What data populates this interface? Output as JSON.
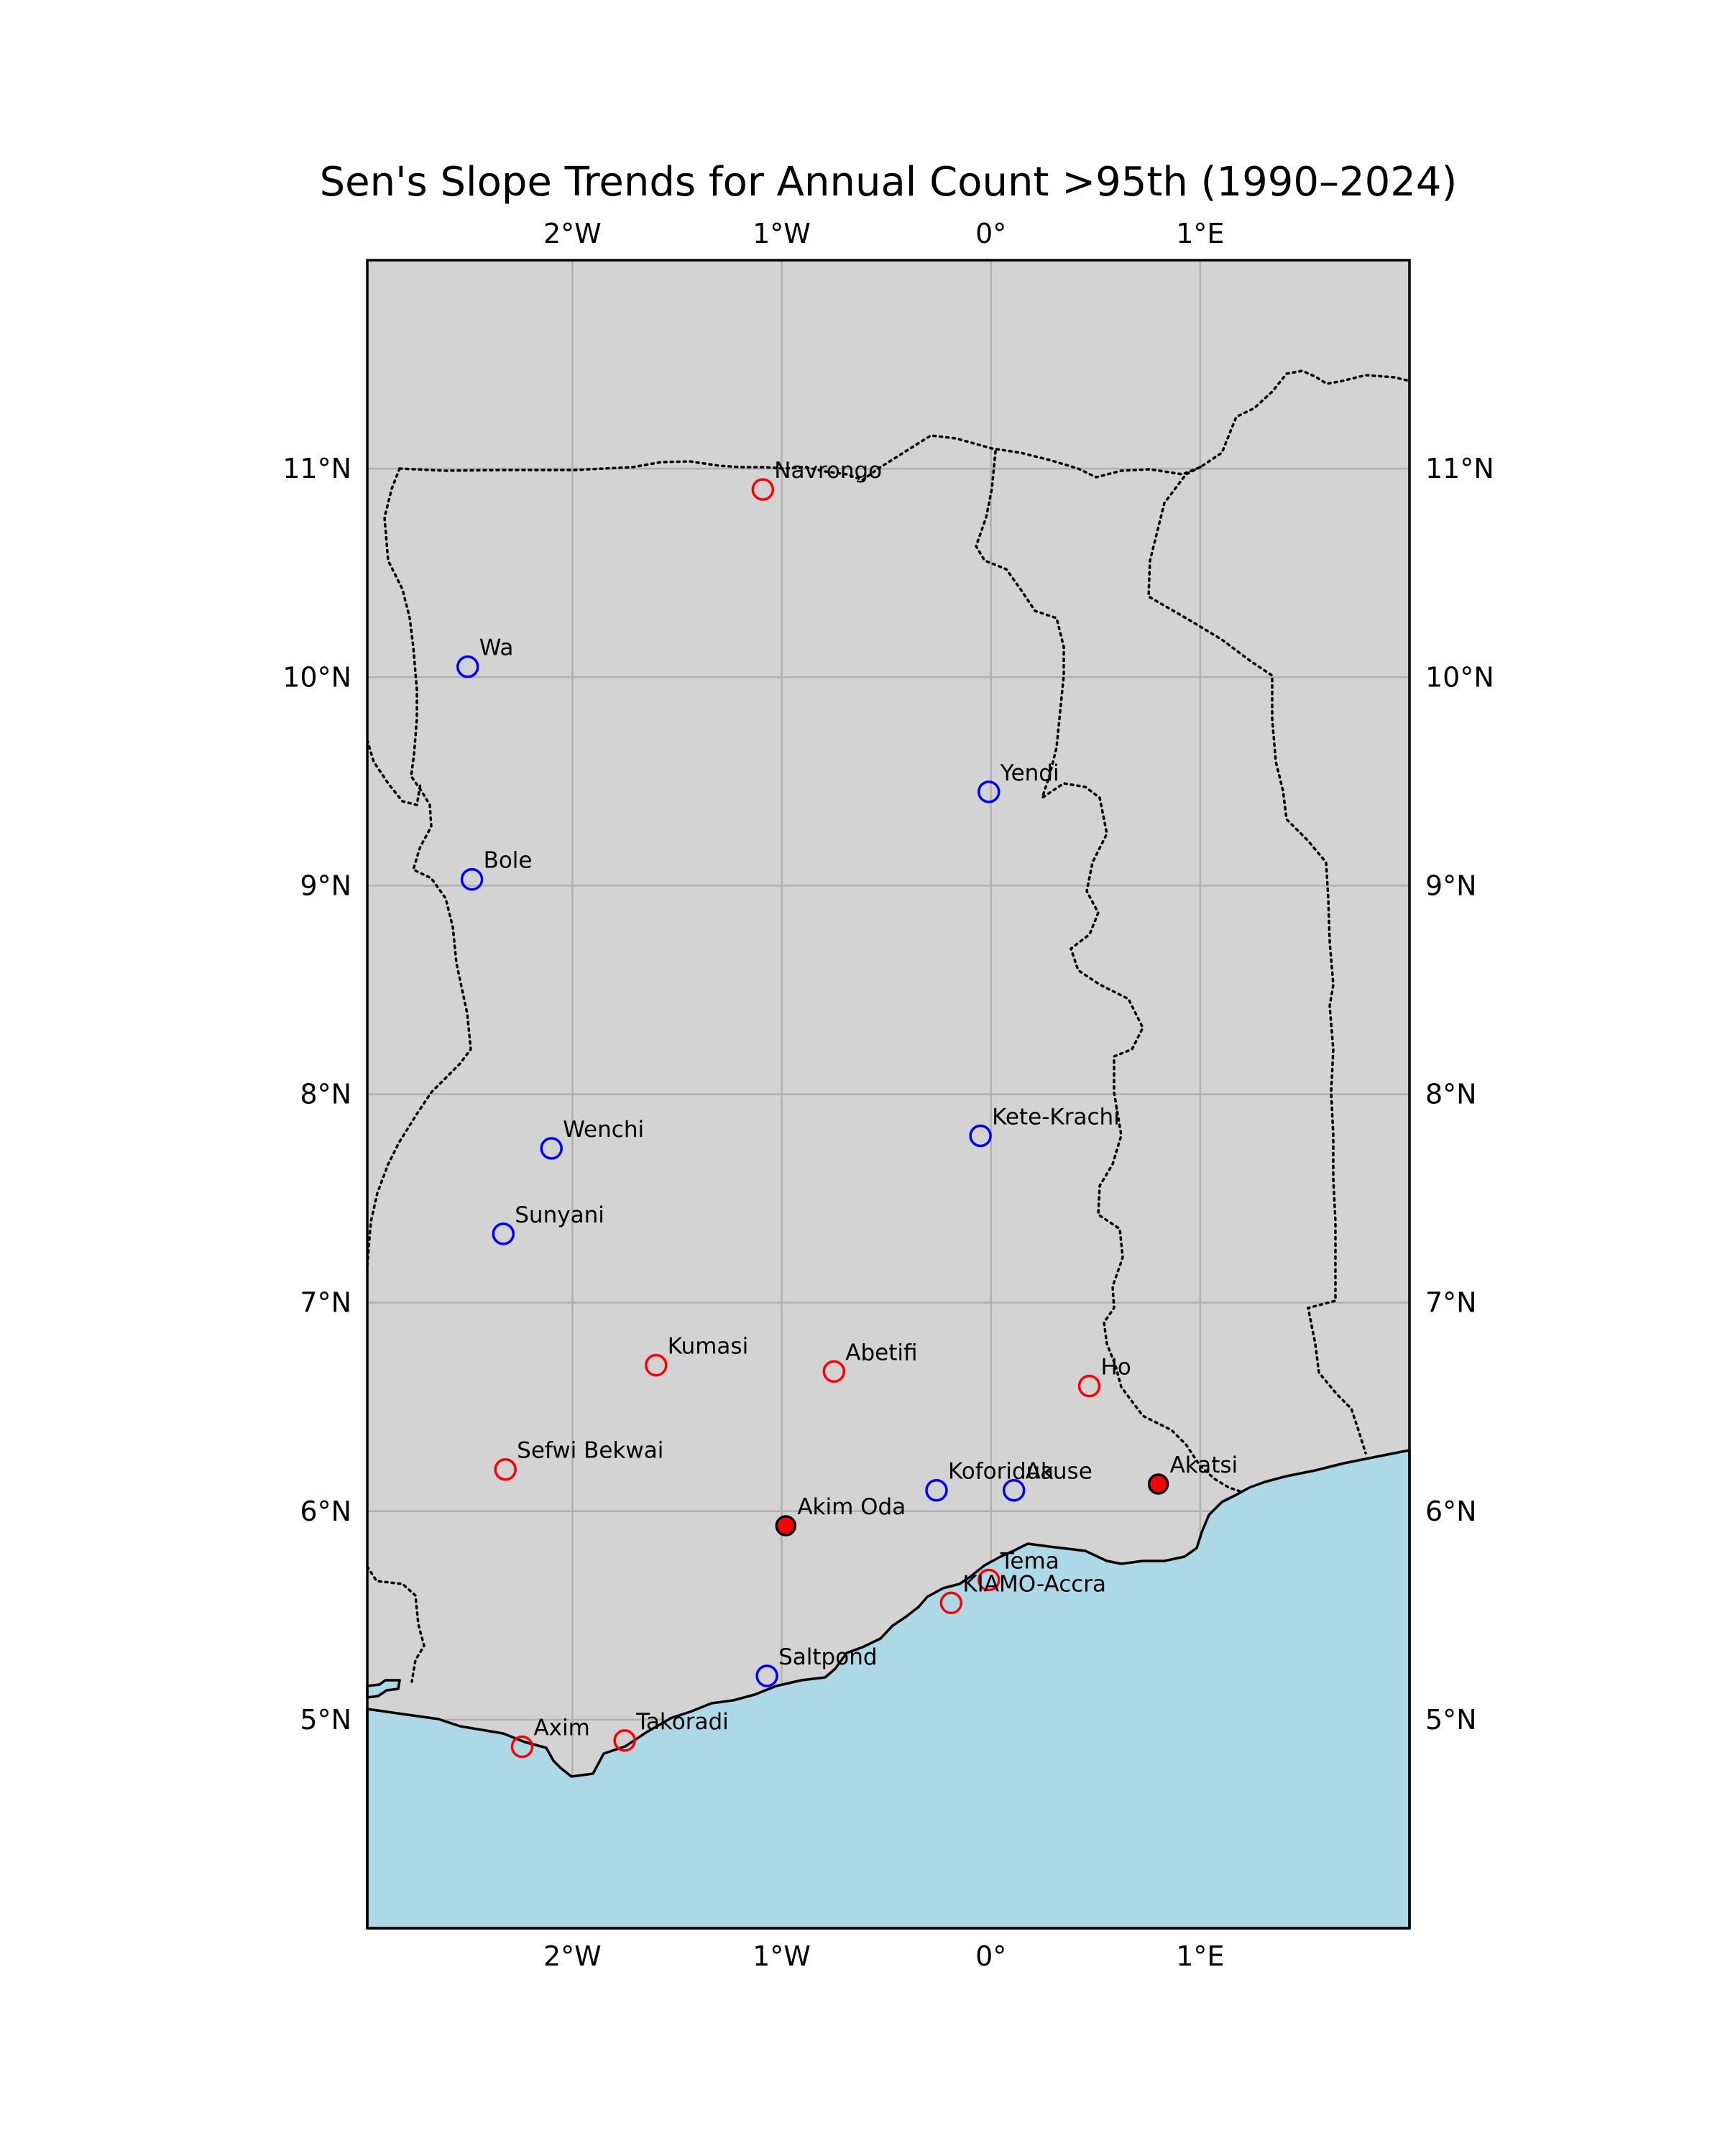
{
  "title": "Sen's Slope Trends for Annual Count >95th (1990–2024)",
  "map": {
    "extent": {
      "lon_min": -2.98,
      "lon_max": 2.0,
      "lat_min": 4.0,
      "lat_max": 12.0
    },
    "land_color": "#d3d3d3",
    "ocean_color": "#add8e6",
    "gridlines": true,
    "lon_ticks": [
      {
        "value": -2,
        "label": "2°W"
      },
      {
        "value": -1,
        "label": "1°W"
      },
      {
        "value": 0,
        "label": "0°"
      },
      {
        "value": 1,
        "label": "1°E"
      }
    ],
    "lat_ticks": [
      {
        "value": 11,
        "label": "11°N"
      },
      {
        "value": 10,
        "label": "10°N"
      },
      {
        "value": 9,
        "label": "9°N"
      },
      {
        "value": 8,
        "label": "8°N"
      },
      {
        "value": 7,
        "label": "7°N"
      },
      {
        "value": 6,
        "label": "6°N"
      },
      {
        "value": 5,
        "label": "5°N"
      }
    ]
  },
  "colors": {
    "positive": "#ff0000",
    "negative": "#0000ff",
    "significant_fill": "#ff0000"
  },
  "stations": [
    {
      "name": "Navrongo",
      "lon": -1.09,
      "lat": 10.9,
      "trend": "positive",
      "significant": false
    },
    {
      "name": "Wa",
      "lon": -2.5,
      "lat": 10.05,
      "trend": "negative",
      "significant": false
    },
    {
      "name": "Yendi",
      "lon": -0.01,
      "lat": 9.45,
      "trend": "negative",
      "significant": false
    },
    {
      "name": "Bole",
      "lon": -2.48,
      "lat": 9.03,
      "trend": "negative",
      "significant": false
    },
    {
      "name": "Wenchi",
      "lon": -2.1,
      "lat": 7.74,
      "trend": "negative",
      "significant": false
    },
    {
      "name": "Kete-Krachi",
      "lon": -0.05,
      "lat": 7.8,
      "trend": "negative",
      "significant": false
    },
    {
      "name": "Sunyani",
      "lon": -2.33,
      "lat": 7.33,
      "trend": "negative",
      "significant": false
    },
    {
      "name": "Kumasi",
      "lon": -1.6,
      "lat": 6.7,
      "trend": "positive",
      "significant": false
    },
    {
      "name": "Abetifi",
      "lon": -0.75,
      "lat": 6.67,
      "trend": "positive",
      "significant": false
    },
    {
      "name": "Ho",
      "lon": 0.47,
      "lat": 6.6,
      "trend": "positive",
      "significant": false
    },
    {
      "name": "Sefwi Bekwai",
      "lon": -2.32,
      "lat": 6.2,
      "trend": "positive",
      "significant": false
    },
    {
      "name": "Akatsi",
      "lon": 0.8,
      "lat": 6.13,
      "trend": "positive",
      "significant": true
    },
    {
      "name": "Koforidua",
      "lon": -0.26,
      "lat": 6.1,
      "trend": "negative",
      "significant": false
    },
    {
      "name": "Akuse",
      "lon": 0.11,
      "lat": 6.1,
      "trend": "negative",
      "significant": false
    },
    {
      "name": "Akim Oda",
      "lon": -0.98,
      "lat": 5.93,
      "trend": "positive",
      "significant": true
    },
    {
      "name": "Tema",
      "lon": -0.01,
      "lat": 5.67,
      "trend": "positive",
      "significant": false
    },
    {
      "name": "KIAMO-Accra",
      "lon": -0.19,
      "lat": 5.56,
      "trend": "positive",
      "significant": false
    },
    {
      "name": "Saltpond",
      "lon": -1.07,
      "lat": 5.21,
      "trend": "negative",
      "significant": false
    },
    {
      "name": "Takoradi",
      "lon": -1.75,
      "lat": 4.9,
      "trend": "positive",
      "significant": false
    },
    {
      "name": "Axim",
      "lon": -2.24,
      "lat": 4.87,
      "trend": "positive",
      "significant": false
    }
  ]
}
